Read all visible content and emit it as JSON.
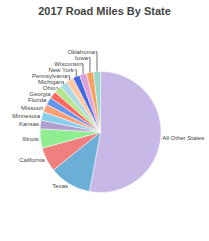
{
  "chart_data": {
    "type": "pie",
    "title": "2017 Road Miles By State",
    "categories": [
      "All Other States",
      "Texas",
      "California",
      "Illinois",
      "Kansas",
      "Minnesota",
      "Missouri",
      "Florida",
      "Georgia",
      "Ohio",
      "Michigan",
      "Pennsylvania",
      "New York",
      "Wisconsin",
      "Iowa",
      "Oklahoma"
    ],
    "values": [
      3200000,
      680000,
      394000,
      310000,
      140000,
      137000,
      130000,
      121000,
      118000,
      120000,
      122000,
      121000,
      113000,
      115000,
      113000,
      112000
    ],
    "colors": [
      "#c8b8e8",
      "#6baed6",
      "#f08080",
      "#90ee90",
      "#b0a0d0",
      "#87ceeb",
      "#ffa07a",
      "#6495ed",
      "#ff6961",
      "#b4e68c",
      "#add8e6",
      "#ffc8a0",
      "#4169e1",
      "#dda0dd",
      "#f4a460",
      "#98d8c8"
    ]
  }
}
